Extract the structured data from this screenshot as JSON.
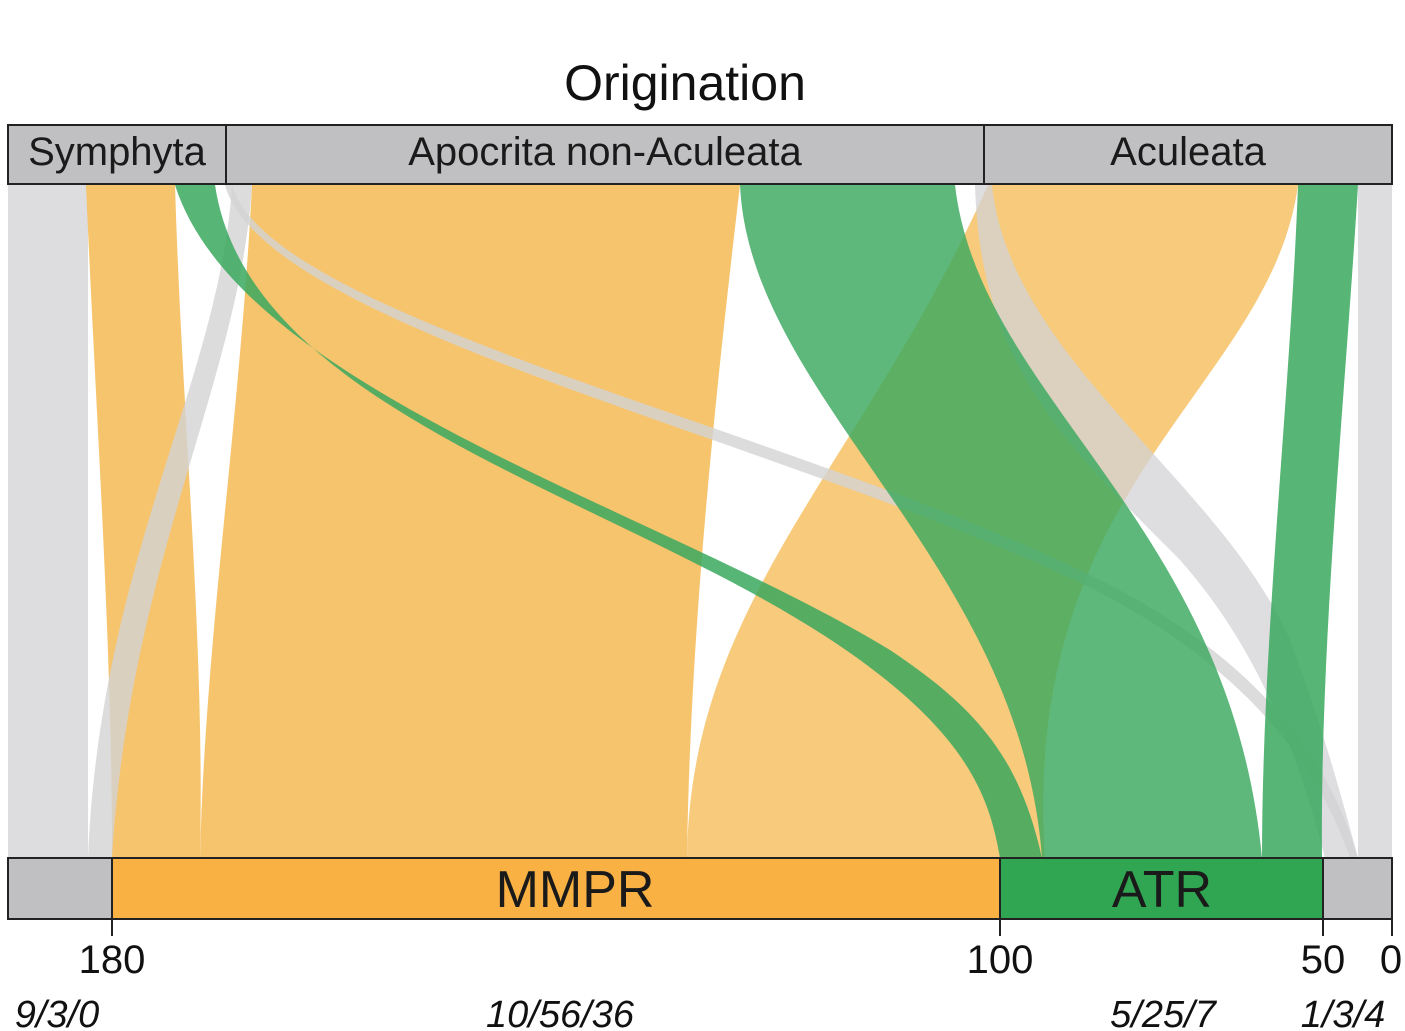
{
  "title": "Origination",
  "top_groups": [
    {
      "label": "Symphyta"
    },
    {
      "label": "Apocrita non-Aculeata"
    },
    {
      "label": "Aculeata"
    }
  ],
  "bottom_groups": [
    {
      "label": "MMPR"
    },
    {
      "label": "ATR"
    }
  ],
  "axis_ticks": [
    "180",
    "100",
    "50",
    "0"
  ],
  "group_ratios": [
    "9/3/0",
    "10/56/36",
    "5/25/7",
    "1/3/4"
  ],
  "colors": {
    "mmpr": "#f5a623",
    "mmpr_flow": "#f6c165",
    "atr": "#2fa753",
    "atr_flow": "#3aa85e",
    "neutral": "#c8c8ca",
    "neutral_flow": "#d9d9db",
    "box_gray": "#c0c0c2"
  }
}
